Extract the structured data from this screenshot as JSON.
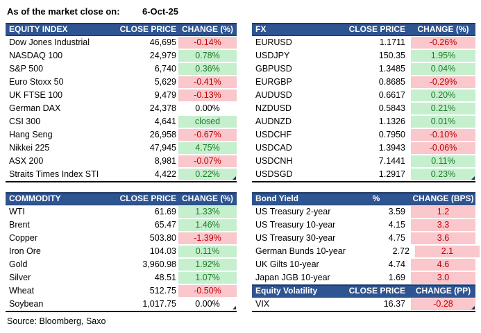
{
  "meta": {
    "as_of_label": "As of the market close on:",
    "as_of_date": "6-Oct-25",
    "source": "Source: Bloomberg, Saxo"
  },
  "colors": {
    "header_bg": "#2E5491",
    "header_border": "#1F3864",
    "up_bg": "#C6EFCE",
    "up_text": "#1E7B29",
    "down_bg": "#F9C7CC",
    "down_text": "#C00000",
    "marker": "#17375E",
    "table_border": "#000000"
  },
  "tables": {
    "equity": {
      "title": "EQUITY INDEX",
      "col2": "CLOSE PRICE",
      "col3": "CHANGE (%)",
      "rows": [
        {
          "name": "Dow Jones Industrial",
          "value": "46,695",
          "change": "-0.14%",
          "dir": "down"
        },
        {
          "name": "NASDAQ 100",
          "value": "24,979",
          "change": "0.78%",
          "dir": "up"
        },
        {
          "name": "S&P 500",
          "value": "6,740",
          "change": "0.36%",
          "dir": "up"
        },
        {
          "name": "Euro Stoxx 50",
          "value": "5,629",
          "change": "-0.41%",
          "dir": "down"
        },
        {
          "name": "UK FTSE 100",
          "value": "9,479",
          "change": "-0.13%",
          "dir": "down"
        },
        {
          "name": "German DAX",
          "value": "24,378",
          "change": "0.00%",
          "dir": "flat"
        },
        {
          "name": "CSI 300",
          "value": "4,641",
          "change": "closed",
          "dir": "up"
        },
        {
          "name": "Hang Seng",
          "value": "26,958",
          "change": "-0.67%",
          "dir": "down"
        },
        {
          "name": "Nikkei 225",
          "value": "47,945",
          "change": "4.75%",
          "dir": "up"
        },
        {
          "name": "ASX 200",
          "value": "8,981",
          "change": "-0.07%",
          "dir": "down"
        },
        {
          "name": "Straits Times Index STI",
          "value": "4,422",
          "change": "0.22%",
          "dir": "up"
        }
      ]
    },
    "fx": {
      "title": "FX",
      "col2": "CLOSE PRICE",
      "col3": "CHANGE (%)",
      "rows": [
        {
          "name": "EURUSD",
          "value": "1.1711",
          "change": "-0.26%",
          "dir": "down"
        },
        {
          "name": "USDJPY",
          "value": "150.35",
          "change": "1.95%",
          "dir": "up"
        },
        {
          "name": "GBPUSD",
          "value": "1.3485",
          "change": "0.04%",
          "dir": "up"
        },
        {
          "name": "EURGBP",
          "value": "0.8685",
          "change": "-0.29%",
          "dir": "down"
        },
        {
          "name": "AUDUSD",
          "value": "0.6617",
          "change": "0.20%",
          "dir": "up"
        },
        {
          "name": "NZDUSD",
          "value": "0.5843",
          "change": "0.21%",
          "dir": "up"
        },
        {
          "name": "AUDNZD",
          "value": "1.1326",
          "change": "0.01%",
          "dir": "up"
        },
        {
          "name": "USDCHF",
          "value": "0.7950",
          "change": "-0.10%",
          "dir": "down"
        },
        {
          "name": "USDCAD",
          "value": "1.3943",
          "change": "-0.06%",
          "dir": "down"
        },
        {
          "name": "USDCNH",
          "value": "7.1441",
          "change": "0.11%",
          "dir": "up"
        },
        {
          "name": "USDSGD",
          "value": "1.2917",
          "change": "0.23%",
          "dir": "up"
        }
      ]
    },
    "commodity": {
      "title": "COMMODITY",
      "col2": "CLOSE PRICE",
      "col3": "CHANGE (%)",
      "rows": [
        {
          "name": "WTI",
          "value": "61.69",
          "change": "1.33%",
          "dir": "up"
        },
        {
          "name": "Brent",
          "value": "65.47",
          "change": "1.46%",
          "dir": "up"
        },
        {
          "name": "Copper",
          "value": "503.80",
          "change": "-1.39%",
          "dir": "down"
        },
        {
          "name": "Iron Ore",
          "value": "104.03",
          "change": "0.11%",
          "dir": "up"
        },
        {
          "name": "Gold",
          "value": "3,960.98",
          "change": "1.92%",
          "dir": "up"
        },
        {
          "name": "Silver",
          "value": "48.51",
          "change": "1.07%",
          "dir": "up"
        },
        {
          "name": "Wheat",
          "value": "512.75",
          "change": "-0.50%",
          "dir": "down"
        },
        {
          "name": "Soybean",
          "value": "1,017.75",
          "change": "0.00%",
          "dir": "flat"
        }
      ]
    },
    "bond": {
      "title": "Bond Yield",
      "col2": "%",
      "col3": "CHANGE (BPS)",
      "center_col2": true,
      "corner": false,
      "rows": [
        {
          "name": "US Treasury 2-year",
          "value": "3.59",
          "change": "1.2",
          "dir": "down"
        },
        {
          "name": "US Treasury 10-year",
          "value": "4.15",
          "change": "3.3",
          "dir": "down"
        },
        {
          "name": "US Treasury 30-year",
          "value": "4.75",
          "change": "3.6",
          "dir": "down"
        },
        {
          "name": "German Bunds 10-year",
          "value": "2.72",
          "change": "2.1",
          "dir": "down"
        },
        {
          "name": "UK Gilts 10-year",
          "value": "4.74",
          "change": "4.6",
          "dir": "down"
        },
        {
          "name": "Japan JGB 10-year",
          "value": "1.69",
          "change": "3.0",
          "dir": "down"
        }
      ]
    },
    "volatility": {
      "title": "Equity Volatility",
      "col2": "CLOSE PRICE",
      "col3": "CHANGE (PP)",
      "rows": [
        {
          "name": "VIX",
          "value": "16.37",
          "change": "-0.28",
          "dir": "down"
        }
      ]
    }
  }
}
